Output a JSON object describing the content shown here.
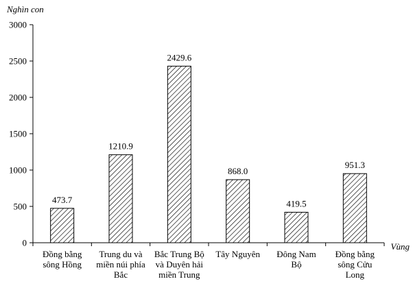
{
  "chart_data": {
    "type": "bar",
    "ylabel": "Nghìn con",
    "xlabel": "Vùng",
    "ylim": [
      0,
      3000
    ],
    "yticks": [
      0,
      500,
      1000,
      1500,
      2000,
      2500,
      3000
    ],
    "categories": [
      [
        "Đồng bằng",
        "sông Hồng"
      ],
      [
        "Trung du và",
        "miền núi phía",
        "Bắc"
      ],
      [
        "Bắc Trung Bộ",
        "và Duyên hải",
        "miền Trung"
      ],
      [
        "Tây Nguyên"
      ],
      [
        "Đông Nam",
        "Bộ"
      ],
      [
        "Đồng bằng",
        "sông Cửu",
        "Long"
      ]
    ],
    "values": [
      473.7,
      1210.9,
      2429.6,
      868.0,
      419.5,
      951.3
    ],
    "value_labels": [
      "473.7",
      "1210.9",
      "2429.6",
      "868.0",
      "419.5",
      "951.3"
    ],
    "bar_fill": "hatched",
    "bar_color": "#000000",
    "grid": false
  }
}
